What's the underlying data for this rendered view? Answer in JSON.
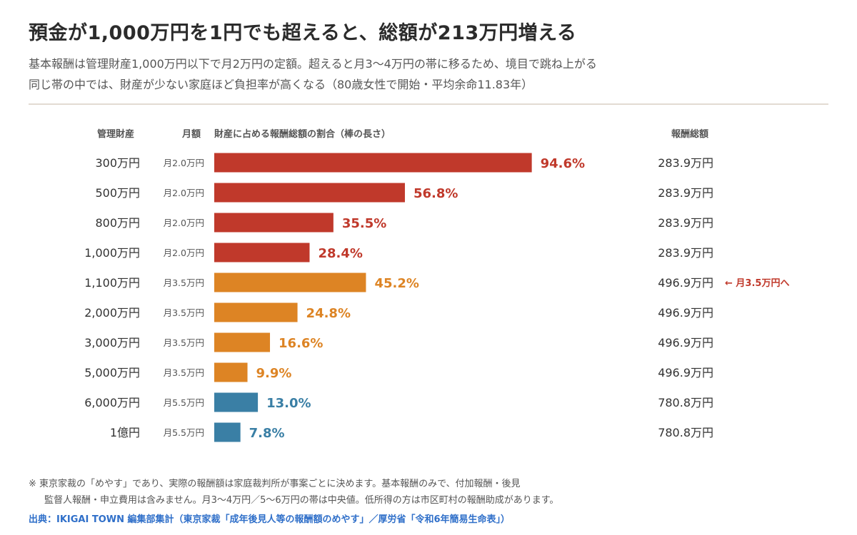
{
  "header": {
    "title": "預金が1,000万円を1円でも超えると、総額が213万円増える",
    "subtitle_line1": "基本報酬は管理財産1,000万円以下で月2万円の定額。超えると月3〜4万円の帯に移るため、境目で跳ね上がる",
    "subtitle_line2": "同じ帯の中では、財産が少ない家庭ほど負担率が高くなる（80歳女性で開始・平均余命11.83年）"
  },
  "columns": {
    "assets": "管理財産",
    "monthly": "月額",
    "ratio": "財産に占める報酬総額の割合（棒の長さ）",
    "total": "報酬総額"
  },
  "colors": {
    "band_2man": "#c0392b",
    "band_3_5man": "#dd8424",
    "band_5_5man": "#3a7fa5",
    "annotation": "#c0392b"
  },
  "chart_data": {
    "type": "bar",
    "orientation": "horizontal",
    "grid": false,
    "categories": [
      "300万円",
      "500万円",
      "800万円",
      "1,000万円",
      "1,100万円",
      "2,000万円",
      "3,000万円",
      "5,000万円",
      "6,000万円",
      "1億円"
    ],
    "monthly": [
      "月2.0万円",
      "月2.0万円",
      "月2.0万円",
      "月2.0万円",
      "月3.5万円",
      "月3.5万円",
      "月3.5万円",
      "月3.5万円",
      "月5.5万円",
      "月5.5万円"
    ],
    "values": [
      94.6,
      56.8,
      35.5,
      28.4,
      45.2,
      24.8,
      16.6,
      9.9,
      13.0,
      7.8
    ],
    "value_labels": [
      "94.6%",
      "56.8%",
      "35.5%",
      "28.4%",
      "45.2%",
      "24.8%",
      "16.6%",
      "9.9%",
      "13.0%",
      "7.8%"
    ],
    "totals": [
      "283.9万円",
      "283.9万円",
      "283.9万円",
      "283.9万円",
      "496.9万円",
      "496.9万円",
      "496.9万円",
      "496.9万円",
      "780.8万円",
      "780.8万円"
    ],
    "bands": [
      "band_2man",
      "band_2man",
      "band_2man",
      "band_2man",
      "band_3_5man",
      "band_3_5man",
      "band_3_5man",
      "band_3_5man",
      "band_5_5man",
      "band_5_5man"
    ],
    "xlim": [
      0,
      100
    ],
    "annotation": {
      "category": "1,100万円",
      "text": "← 月3.5万円へ"
    }
  },
  "notes": {
    "line1": "※ 東京家裁の「めやす」であり、実際の報酬額は家庭裁判所が事案ごとに決めます。基本報酬のみで、付加報酬・後見",
    "line2": "監督人報酬・申立費用は含みません。月3〜4万円／5〜6万円の帯は中央値。低所得の方は市区町村の報酬助成があります。",
    "source": "出典：IKIGAI TOWN 編集部集計（東京家裁「成年後見人等の報酬額のめやす」／厚労省「令和6年簡易生命表」）"
  }
}
